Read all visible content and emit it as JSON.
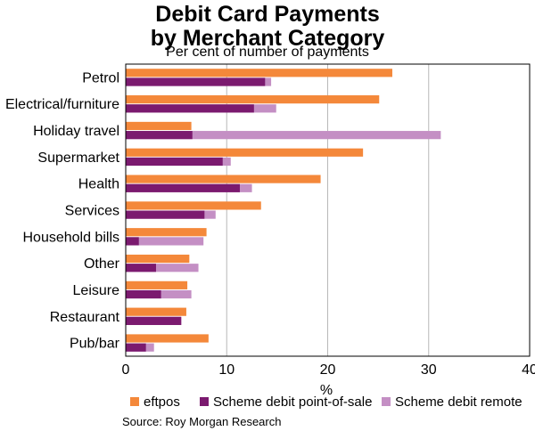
{
  "chart_data": {
    "type": "bar",
    "orientation": "horizontal",
    "title_line1": "Debit Card Payments",
    "title_line2": "by Merchant Category",
    "subtitle": "Per cent of number of payments",
    "xlabel": "%",
    "xlim": [
      0,
      40
    ],
    "xticks": [
      0,
      10,
      20,
      30,
      40
    ],
    "grid": true,
    "legend_position": "bottom",
    "source": "Source: Roy Morgan Research",
    "categories": [
      "Petrol",
      "Electrical/furniture",
      "Holiday travel",
      "Supermarket",
      "Health",
      "Services",
      "Household bills",
      "Other",
      "Leisure",
      "Restaurant",
      "Pub/bar"
    ],
    "series": [
      {
        "name": "eftpos",
        "color": "#f4883a",
        "values": [
          26.4,
          25.1,
          6.5,
          23.5,
          19.3,
          13.4,
          8.0,
          6.3,
          6.1,
          6.0,
          8.2
        ]
      },
      {
        "name": "Scheme debit point-of-sale",
        "color": "#7b1a6f",
        "values": [
          13.8,
          12.7,
          6.6,
          9.6,
          11.3,
          7.8,
          1.3,
          3.0,
          3.5,
          5.5,
          2.0
        ]
      },
      {
        "name": "Scheme debit remote",
        "color": "#c48fc4",
        "values": [
          14.4,
          14.9,
          31.2,
          10.4,
          12.5,
          8.9,
          7.7,
          7.2,
          6.5,
          5.5,
          2.8
        ]
      }
    ]
  }
}
